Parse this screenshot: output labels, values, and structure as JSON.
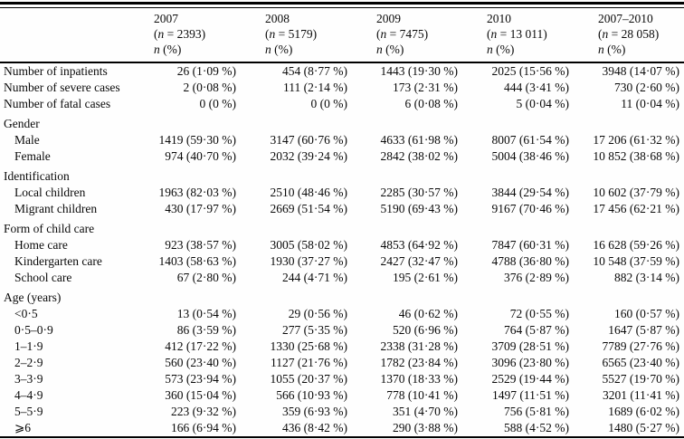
{
  "table": {
    "shared": {
      "open": "(",
      "n_italic": "n",
      "eq": " = ",
      "close": ")",
      "pct_rest": " (%)"
    },
    "columns": [
      {
        "year": "2007",
        "n": "2393"
      },
      {
        "year": "2008",
        "n": "5179"
      },
      {
        "year": "2009",
        "n": "7475"
      },
      {
        "year": "2010",
        "n": "13 011"
      },
      {
        "year": "2007–2010",
        "n": "28 058"
      }
    ],
    "sections": [
      {
        "header": "",
        "rows": [
          {
            "label": "Number of inpatients",
            "values": [
              "26 (1·09 %)",
              "454 (8·77 %)",
              "1443 (19·30 %)",
              "2025 (15·56 %)",
              "3948 (14·07 %)"
            ]
          },
          {
            "label": "Number of severe cases",
            "values": [
              "2 (0·08 %)",
              "111 (2·14 %)",
              "173 (2·31 %)",
              "444 (3·41 %)",
              "730 (2·60 %)"
            ]
          },
          {
            "label": "Number of fatal cases",
            "values": [
              "0 (0 %)",
              "0 (0 %)",
              "6 (0·08 %)",
              "5 (0·04 %)",
              "11 (0·04 %)"
            ]
          }
        ]
      },
      {
        "header": "Gender",
        "rows": [
          {
            "label": "Male",
            "values": [
              "1419 (59·30 %)",
              "3147 (60·76 %)",
              "4633 (61·98 %)",
              "8007 (61·54 %)",
              "17 206 (61·32 %)"
            ]
          },
          {
            "label": "Female",
            "values": [
              "974 (40·70 %)",
              "2032 (39·24 %)",
              "2842 (38·02 %)",
              "5004 (38·46 %)",
              "10 852 (38·68 %)"
            ]
          }
        ]
      },
      {
        "header": "Identification",
        "rows": [
          {
            "label": "Local children",
            "values": [
              "1963 (82·03 %)",
              "2510 (48·46 %)",
              "2285 (30·57 %)",
              "3844 (29·54 %)",
              "10 602 (37·79 %)"
            ]
          },
          {
            "label": "Migrant children",
            "values": [
              "430 (17·97 %)",
              "2669 (51·54 %)",
              "5190 (69·43 %)",
              "9167 (70·46 %)",
              "17 456 (62·21 %)"
            ]
          }
        ]
      },
      {
        "header": "Form of child care",
        "rows": [
          {
            "label": "Home care",
            "values": [
              "923 (38·57 %)",
              "3005 (58·02 %)",
              "4853 (64·92 %)",
              "7847 (60·31 %)",
              "16 628 (59·26 %)"
            ]
          },
          {
            "label": "Kindergarten care",
            "values": [
              "1403 (58·63 %)",
              "1930 (37·27 %)",
              "2427 (32·47 %)",
              "4788 (36·80 %)",
              "10 548 (37·59 %)"
            ]
          },
          {
            "label": "School care",
            "values": [
              "67 (2·80 %)",
              "244 (4·71 %)",
              "195 (2·61 %)",
              "376 (2·89 %)",
              "882 (3·14 %)"
            ]
          }
        ]
      },
      {
        "header": "Age (years)",
        "rows": [
          {
            "label": "<0·5",
            "values": [
              "13 (0·54 %)",
              "29 (0·56 %)",
              "46 (0·62 %)",
              "72 (0·55 %)",
              "160 (0·57 %)"
            ]
          },
          {
            "label": "0·5–0·9",
            "values": [
              "86 (3·59 %)",
              "277 (5·35 %)",
              "520 (6·96 %)",
              "764 (5·87 %)",
              "1647 (5·87 %)"
            ]
          },
          {
            "label": "1–1·9",
            "values": [
              "412 (17·22 %)",
              "1330 (25·68 %)",
              "2338 (31·28 %)",
              "3709 (28·51 %)",
              "7789 (27·76 %)"
            ]
          },
          {
            "label": "2–2·9",
            "values": [
              "560 (23·40 %)",
              "1127 (21·76 %)",
              "1782 (23·84 %)",
              "3096 (23·80 %)",
              "6565 (23·40 %)"
            ]
          },
          {
            "label": "3–3·9",
            "values": [
              "573 (23·94 %)",
              "1055 (20·37 %)",
              "1370 (18·33 %)",
              "2529 (19·44 %)",
              "5527 (19·70 %)"
            ]
          },
          {
            "label": "4–4·9",
            "values": [
              "360 (15·04 %)",
              "566 (10·93 %)",
              "778 (10·41 %)",
              "1497 (11·51 %)",
              "3201 (11·41 %)"
            ]
          },
          {
            "label": "5–5·9",
            "values": [
              "223 (9·32 %)",
              "359 (6·93 %)",
              "351 (4·70 %)",
              "756 (5·81 %)",
              "1689 (6·02 %)"
            ]
          },
          {
            "label": "⩾6",
            "values": [
              "166 (6·94 %)",
              "436 (8·42 %)",
              "290 (3·88 %)",
              "588 (4·52 %)",
              "1480 (5·27 %)"
            ]
          }
        ]
      }
    ]
  }
}
